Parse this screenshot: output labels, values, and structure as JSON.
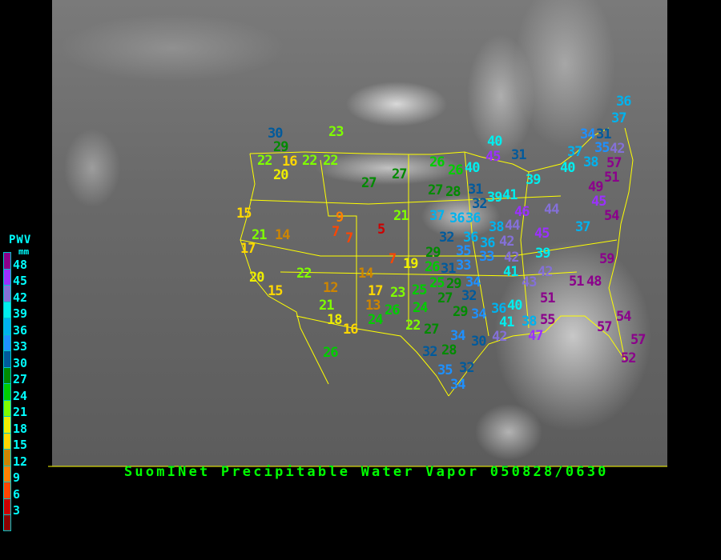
{
  "title": "SuomINet Precipitable Water Vapor 050828/0630",
  "legend": {
    "title": "PWV",
    "unit": "mm",
    "bins": [
      {
        "label": "48",
        "color": "#8b008b"
      },
      {
        "label": "45",
        "color": "#9b30ff"
      },
      {
        "label": "42",
        "color": "#8470d8"
      },
      {
        "label": "39",
        "color": "#00eeee"
      },
      {
        "label": "36",
        "color": "#00b2ee"
      },
      {
        "label": "33",
        "color": "#1e90ff"
      },
      {
        "label": "30",
        "color": "#005a9c"
      },
      {
        "label": "27",
        "color": "#008b00"
      },
      {
        "label": "24",
        "color": "#00cd00"
      },
      {
        "label": "21",
        "color": "#7fff00"
      },
      {
        "label": "18",
        "color": "#eeee00"
      },
      {
        "label": "15",
        "color": "#ffd700"
      },
      {
        "label": "12",
        "color": "#cd8500"
      },
      {
        "label": "9",
        "color": "#ff8000"
      },
      {
        "label": "6",
        "color": "#ff4500"
      },
      {
        "label": "3",
        "color": "#cd0000"
      },
      {
        "label": "",
        "color": "#8b0000"
      }
    ]
  },
  "stations": [
    "30",
    "29",
    "22",
    "16",
    "22",
    "22",
    "20",
    "23",
    "27",
    "27",
    "15",
    "21",
    "14",
    "9",
    "7",
    "7",
    "5",
    "21",
    "17",
    "20",
    "15",
    "22",
    "12",
    "21",
    "18",
    "16",
    "14",
    "7",
    "19",
    "17",
    "13",
    "23",
    "26",
    "24",
    "25",
    "24",
    "22",
    "27",
    "26",
    "26",
    "26",
    "40",
    "45",
    "31",
    "40",
    "27",
    "28",
    "31",
    "39",
    "41",
    "32",
    "37",
    "36",
    "36",
    "46",
    "44",
    "44",
    "38",
    "32",
    "36",
    "36",
    "42",
    "45",
    "39",
    "29",
    "26",
    "35",
    "33",
    "33",
    "42",
    "39",
    "31",
    "25",
    "29",
    "34",
    "41",
    "43",
    "42",
    "27",
    "32",
    "29",
    "34",
    "36",
    "40",
    "41",
    "42",
    "38",
    "47",
    "55",
    "51",
    "34",
    "30",
    "28",
    "32",
    "35",
    "32",
    "34",
    "59",
    "51",
    "48",
    "54",
    "57",
    "57",
    "52",
    "36",
    "37",
    "34",
    "31",
    "37",
    "38",
    "35",
    "42",
    "40",
    "57",
    "51",
    "49",
    "45",
    "54",
    "37"
  ]
}
